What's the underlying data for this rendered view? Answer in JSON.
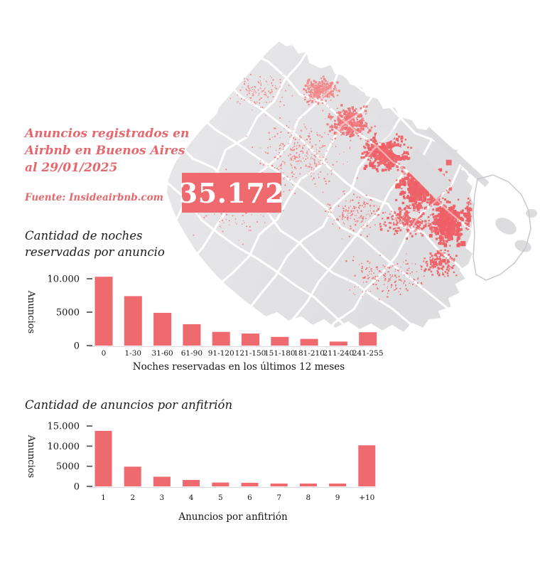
{
  "page": {
    "background": "#ffffff",
    "accent_color": "#ee6a6e",
    "text_color": "#1c1c1c"
  },
  "header": {
    "title_lines": [
      "Anuncios registrados en",
      "Airbnb en Buenos Aires",
      "al 29/01/2025"
    ],
    "source": "Fuente: Insideairbnb.com",
    "total_listings": "35.172"
  },
  "map": {
    "type": "dot-density-map",
    "base_color": "#e4e4e7",
    "border_color": "#ffffff",
    "dot_color": "#ee5f66",
    "dot_color_light": "#f5b1ad",
    "outside_structures_color": "#dcdcdf",
    "reserve_outline_color": "#c9c9cd"
  },
  "chart_data": [
    {
      "type": "bar",
      "title": "Cantidad de noches reservadas por anuncio",
      "ylabel": "Anuncios",
      "xlabel": "Noches reservadas en los últimos 12 meses",
      "categories": [
        "0",
        "1-30",
        "31-60",
        "61-90",
        "91-120",
        "121-150",
        "151-180",
        "181-210",
        "211-240",
        "241-255"
      ],
      "values": [
        10300,
        7400,
        4900,
        3200,
        2050,
        1800,
        1300,
        1000,
        600,
        2000
      ],
      "yticks": [
        0,
        5000,
        10000
      ],
      "ytick_labels": [
        "0",
        "5000",
        "10.000"
      ],
      "ylim": [
        0,
        10800
      ],
      "bar_color": "#ee6a6e",
      "grid": false,
      "legend": "none"
    },
    {
      "type": "bar",
      "title": "Cantidad de anuncios por anfitrión",
      "ylabel": "Anuncios",
      "xlabel": "Anuncios por anfitrión",
      "categories": [
        "1",
        "2",
        "3",
        "4",
        "5",
        "6",
        "7",
        "8",
        "9",
        "+10"
      ],
      "values": [
        13800,
        4900,
        2400,
        1600,
        950,
        900,
        700,
        500,
        500,
        10200
      ],
      "yticks": [
        0,
        5000,
        10000,
        15000
      ],
      "ytick_labels": [
        "0",
        "5000",
        "10.000",
        "15.000"
      ],
      "ylim": [
        0,
        15800
      ],
      "bar_color": "#ee6a6e",
      "grid": false,
      "legend": "none"
    }
  ]
}
